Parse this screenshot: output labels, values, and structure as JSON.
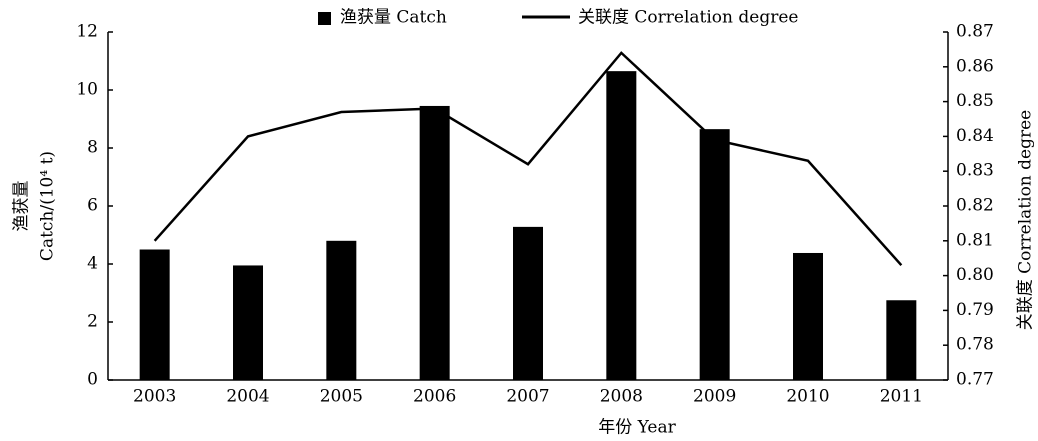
{
  "chart_data": {
    "type": "bar+line",
    "categories": [
      "2003",
      "2004",
      "2005",
      "2006",
      "2007",
      "2008",
      "2009",
      "2010",
      "2011"
    ],
    "series": [
      {
        "name": "渔获量 Catch",
        "type": "bar",
        "color": "#000000",
        "values": [
          4.5,
          3.95,
          4.8,
          9.45,
          5.28,
          10.65,
          8.65,
          4.38,
          2.75
        ]
      },
      {
        "name": "关联度 Correlation degree",
        "type": "line",
        "axis": "y2",
        "color": "#000000",
        "values": [
          0.81,
          0.84,
          0.847,
          0.848,
          0.832,
          0.864,
          0.839,
          0.833,
          0.803
        ]
      }
    ],
    "xlabel": "年份 Year",
    "ylabel": [
      "渔获量",
      "Catch/(10⁴ t)"
    ],
    "y2label": "关联度 Correlation degree",
    "ylim": [
      0,
      12
    ],
    "yticks": [
      0,
      2,
      4,
      6,
      8,
      10,
      12
    ],
    "y2lim": [
      0.77,
      0.87
    ],
    "y2ticks": [
      0.77,
      0.78,
      0.79,
      {
        "value": 0.8,
        "label": "0.80"
      },
      0.81,
      0.82,
      0.83,
      0.84,
      0.85,
      0.86,
      0.87
    ],
    "legend": "top",
    "grid": false
  }
}
